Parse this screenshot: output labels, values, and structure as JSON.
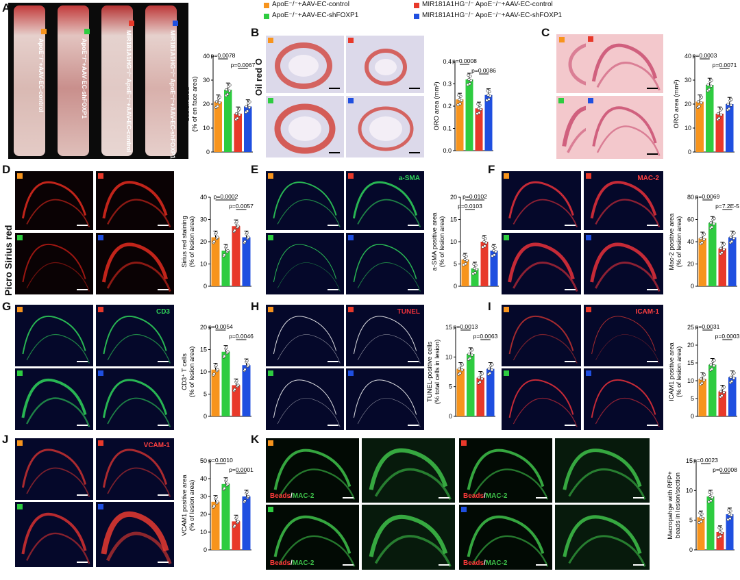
{
  "legend": [
    {
      "label": "ApoE⁻/⁻+AAV-EC-control",
      "color": "#f7941d"
    },
    {
      "label": "ApoE⁻/⁻+AAV-EC-shFOXP1",
      "color": "#2ecc40"
    },
    {
      "label": "MIR181A1HG⁻/⁻ ApoE⁻/⁻+AAV-EC-control",
      "color": "#e8392a"
    },
    {
      "label": "MIR181A1HG⁻/⁻ ApoE⁻/⁻+AAV-EC-shFOXP1",
      "color": "#1f4fe0"
    }
  ],
  "aorta_labels": [
    "ApoE⁻/⁻+AAV-EC-control",
    "ApoE⁻/⁻+AAV-EC-shFOXP1",
    "MIR181A1HG⁻/⁻ ApoE⁻/⁻+AAV-EC-control",
    "MIR181A1HG⁻/⁻ ApoE⁻/⁻+AAV-EC-shFOXP1"
  ],
  "side_labels": {
    "B": "Oil red O",
    "D": "Picro Sirius red"
  },
  "channels": {
    "E": "a-SMA",
    "F": "MAC-2",
    "G": "CD3",
    "H": "TUNEL",
    "I": "ICAM-1",
    "J": "VCAM-1",
    "K_beads": "Beads",
    "K_mac": "MAC-2"
  },
  "chart_data": [
    {
      "panel": "A",
      "type": "bar",
      "ylabel": "Lesion area\n(% of en face area)",
      "yticks": [
        0,
        10,
        20,
        30,
        40
      ],
      "ylim": [
        0,
        40
      ],
      "values": [
        21,
        26,
        16,
        19
      ],
      "pvalues": [
        {
          "text": "p=0.0078",
          "from": 0,
          "to": 1
        },
        {
          "text": "p=0.0067",
          "from": 2,
          "to": 3
        }
      ]
    },
    {
      "panel": "B",
      "type": "bar",
      "ylabel": "ORO area (mm²)",
      "yticks": [
        "0.0",
        "0.1",
        "0.2",
        "0.3",
        "0.4"
      ],
      "ylim": [
        0,
        0.4
      ],
      "values": [
        0.23,
        0.32,
        0.19,
        0.25
      ],
      "pvalues": [
        {
          "text": "p=0.0008",
          "from": 0,
          "to": 1
        },
        {
          "text": "p=0.0086",
          "from": 2,
          "to": 3
        }
      ]
    },
    {
      "panel": "C",
      "type": "bar",
      "ylabel": "ORO area (mm²)",
      "yticks": [
        0,
        10,
        20,
        30,
        40
      ],
      "ylim": [
        0,
        40
      ],
      "values": [
        21,
        28,
        16,
        20
      ],
      "pvalues": [
        {
          "text": "p=0.0003",
          "from": 0,
          "to": 1
        },
        {
          "text": "p=0.0071",
          "from": 2,
          "to": 3
        }
      ]
    },
    {
      "panel": "D",
      "type": "bar",
      "ylabel": "Sirius red staining\n(% of lesion area)",
      "yticks": [
        0,
        10,
        20,
        30,
        40
      ],
      "ylim": [
        0,
        40
      ],
      "values": [
        22,
        16,
        27,
        22
      ],
      "pvalues": [
        {
          "text": "p=0.0002",
          "from": 0,
          "to": 2
        },
        {
          "text": "p=0.0057",
          "from": 2,
          "to": 3
        }
      ]
    },
    {
      "panel": "E",
      "type": "bar",
      "ylabel": "a-SMA positive area\n(% of lesion area)",
      "yticks": [
        0,
        5,
        10,
        15,
        20
      ],
      "ylim": [
        0,
        20
      ],
      "values": [
        6,
        4,
        10,
        8
      ],
      "pvalues": [
        {
          "text": "p=0.0102",
          "from": 0,
          "to": 2
        },
        {
          "text": "p=0.0103",
          "from": 0,
          "to": 1
        }
      ]
    },
    {
      "panel": "F",
      "type": "bar",
      "ylabel": "Mac-2 positive area\n(% of lesion area)",
      "yticks": [
        0,
        20,
        40,
        60,
        80
      ],
      "ylim": [
        0,
        80
      ],
      "values": [
        43,
        57,
        34,
        44
      ],
      "pvalues": [
        {
          "text": "p=0.0069",
          "from": 0,
          "to": 1
        },
        {
          "text": "p=7.2E-5",
          "from": 2,
          "to": 3
        }
      ]
    },
    {
      "panel": "G",
      "type": "bar",
      "ylabel": "CD3⁺ T cells\n(% of lesion area)",
      "yticks": [
        0,
        5,
        10,
        15,
        20
      ],
      "ylim": [
        0,
        20
      ],
      "values": [
        10.5,
        14.5,
        7,
        11.5
      ],
      "pvalues": [
        {
          "text": "p=0.0054",
          "from": 0,
          "to": 1
        },
        {
          "text": "p=0.0046",
          "from": 2,
          "to": 3
        }
      ]
    },
    {
      "panel": "H",
      "type": "bar",
      "ylabel": "TUNEL-positive cells\n(% total cells in lesion)",
      "yticks": [
        0,
        5,
        10,
        15
      ],
      "ylim": [
        0,
        15
      ],
      "values": [
        8,
        10.5,
        6.5,
        8
      ],
      "pvalues": [
        {
          "text": "p=0.0013",
          "from": 0,
          "to": 1
        },
        {
          "text": "p=0.0063",
          "from": 2,
          "to": 3
        }
      ]
    },
    {
      "panel": "I",
      "type": "bar",
      "ylabel": "ICAM1 positive area\n(% of lesion area)",
      "yticks": [
        0,
        5,
        10,
        15,
        20,
        25
      ],
      "ylim": [
        0,
        25
      ],
      "values": [
        10.5,
        14.5,
        7,
        11
      ],
      "pvalues": [
        {
          "text": "p=0.0031",
          "from": 0,
          "to": 1
        },
        {
          "text": "p=0.0003",
          "from": 2,
          "to": 3
        }
      ]
    },
    {
      "panel": "J",
      "type": "bar",
      "ylabel": "VCAM1 positive area\n(% of lesion area)",
      "yticks": [
        0,
        10,
        20,
        30,
        40,
        50
      ],
      "ylim": [
        0,
        50
      ],
      "values": [
        27,
        37,
        16,
        30
      ],
      "pvalues": [
        {
          "text": "p=0.0010",
          "from": 0,
          "to": 1
        },
        {
          "text": "p=0.0001",
          "from": 2,
          "to": 3
        }
      ]
    },
    {
      "panel": "K",
      "type": "bar",
      "ylabel": "Macropahge with RFP+\nbeads in lesion/section",
      "yticks": [
        0,
        5,
        10,
        15
      ],
      "ylim": [
        0,
        15
      ],
      "values": [
        5.5,
        9,
        3,
        6
      ],
      "pvalues": [
        {
          "text": "p=0.0023",
          "from": 0,
          "to": 1
        },
        {
          "text": "p=0.0008",
          "from": 2,
          "to": 3
        }
      ]
    }
  ]
}
